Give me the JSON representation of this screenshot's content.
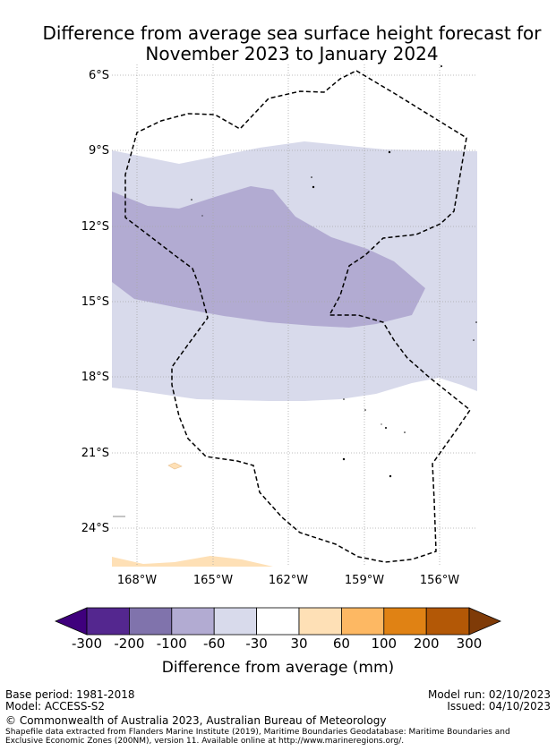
{
  "title": {
    "line1": "Difference from average sea surface height forecast for",
    "line2": "November 2023 to January 2024"
  },
  "map": {
    "lat_labels": [
      "6°S",
      "9°S",
      "12°S",
      "15°S",
      "18°S",
      "21°S",
      "24°S"
    ],
    "lon_labels": [
      "168°W",
      "165°W",
      "162°W",
      "159°W",
      "156°W"
    ]
  },
  "colorbar": {
    "colors": [
      "#3f007d",
      "#54278f",
      "#8073ac",
      "#b2abd2",
      "#d8daeb",
      "#ffffff",
      "#fee0b6",
      "#fdb863",
      "#e08214",
      "#b35806",
      "#7f3b08"
    ],
    "tick_labels": [
      "-300",
      "-200",
      "-100",
      "-60",
      "-30",
      "30",
      "60",
      "100",
      "200",
      "300"
    ],
    "label": "Difference from average (mm)"
  },
  "footer": {
    "base_period": "Base period: 1981-2018",
    "model": "Model: ACCESS-S2",
    "model_run": "Model run: 02/10/2023",
    "issued": "Issued: 04/10/2023",
    "copyright": "© Commonwealth of Australia 2023, Australian Bureau of Meteorology",
    "shapefile_line1": "Shapefile data extracted from Flanders Marine Institute (2019), Maritime Boundaries Geodatabase: Maritime Boundaries and",
    "shapefile_line2": "Exclusive Economic Zones (200NM), version 11. Available online at http://www.marineregions.org/."
  }
}
